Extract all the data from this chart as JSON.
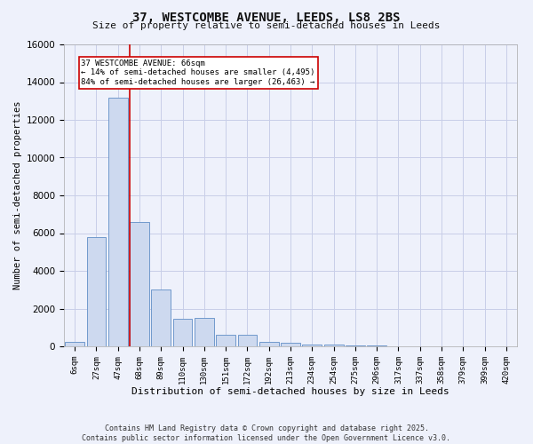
{
  "title_line1": "37, WESTCOMBE AVENUE, LEEDS, LS8 2BS",
  "title_line2": "Size of property relative to semi-detached houses in Leeds",
  "xlabel": "Distribution of semi-detached houses by size in Leeds",
  "ylabel": "Number of semi-detached properties",
  "bar_labels": [
    "6sqm",
    "27sqm",
    "47sqm",
    "68sqm",
    "89sqm",
    "110sqm",
    "130sqm",
    "151sqm",
    "172sqm",
    "192sqm",
    "213sqm",
    "234sqm",
    "254sqm",
    "275sqm",
    "296sqm",
    "317sqm",
    "337sqm",
    "358sqm",
    "379sqm",
    "399sqm",
    "420sqm"
  ],
  "bar_values": [
    250,
    5800,
    13200,
    6600,
    3000,
    1450,
    1500,
    600,
    600,
    250,
    200,
    100,
    80,
    50,
    30,
    20,
    10,
    5,
    3,
    2,
    1
  ],
  "bar_color": "#cdd9ef",
  "bar_edgecolor": "#7099cc",
  "vline_x_index": 3,
  "vline_color": "#cc0000",
  "annotation_text": "37 WESTCOMBE AVENUE: 66sqm\n← 14% of semi-detached houses are smaller (4,495)\n84% of semi-detached houses are larger (26,463) →",
  "annotation_box_color": "#ffffff",
  "annotation_box_edgecolor": "#cc0000",
  "ylim": [
    0,
    16000
  ],
  "yticks": [
    0,
    2000,
    4000,
    6000,
    8000,
    10000,
    12000,
    14000,
    16000
  ],
  "footer_line1": "Contains HM Land Registry data © Crown copyright and database right 2025.",
  "footer_line2": "Contains public sector information licensed under the Open Government Licence v3.0.",
  "bg_color": "#eef1fb",
  "grid_color": "#c8cee8"
}
